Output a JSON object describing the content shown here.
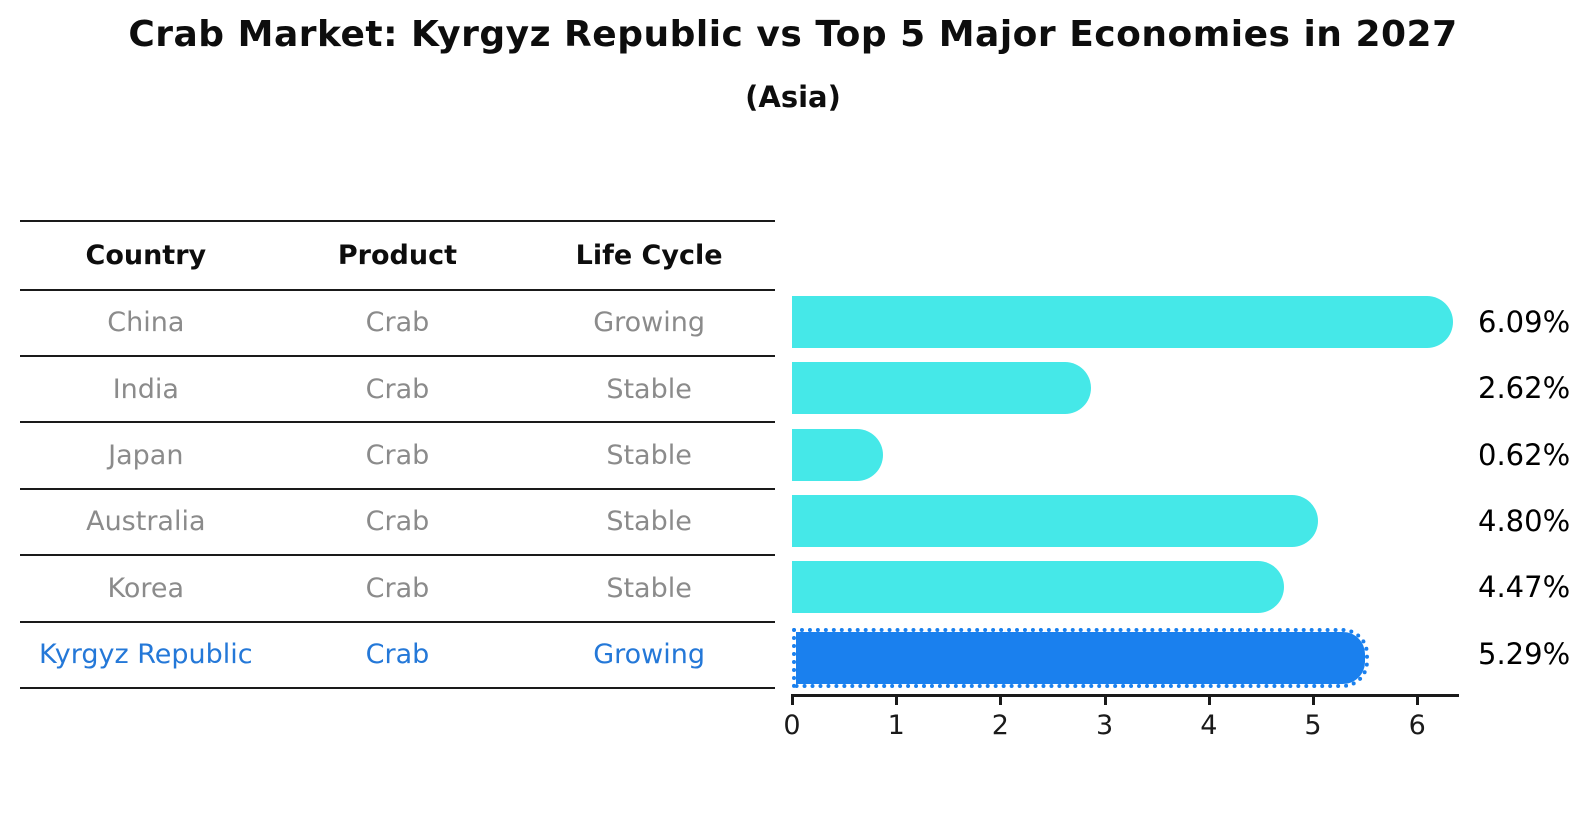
{
  "page": {
    "title": "Crab Market: Kyrgyz Republic vs Top 5 Major Economies in 2027",
    "subtitle": "(Asia)"
  },
  "table": {
    "headers": [
      "Country",
      "Product",
      "Life Cycle"
    ],
    "rows": [
      {
        "country": "China",
        "product": "Crab",
        "life_cycle": "Growing"
      },
      {
        "country": "India",
        "product": "Crab",
        "life_cycle": "Stable"
      },
      {
        "country": "Japan",
        "product": "Crab",
        "life_cycle": "Stable"
      },
      {
        "country": "Australia",
        "product": "Crab",
        "life_cycle": "Stable"
      },
      {
        "country": "Korea",
        "product": "Crab",
        "life_cycle": "Stable"
      },
      {
        "country": "Kyrgyz Republic",
        "product": "Crab",
        "life_cycle": "Growing"
      }
    ]
  },
  "chart_data": {
    "type": "bar",
    "orientation": "horizontal",
    "title": "Crab Market: Kyrgyz Republic vs Top 5 Major Economies in 2027",
    "subtitle": "(Asia)",
    "categories": [
      "China",
      "India",
      "Japan",
      "Australia",
      "Korea",
      "Kyrgyz Republic"
    ],
    "values": [
      6.09,
      2.62,
      0.62,
      4.8,
      4.47,
      5.29
    ],
    "value_labels": [
      "6.09%",
      "2.62%",
      "0.62%",
      "4.80%",
      "4.47%",
      "5.29%"
    ],
    "x_ticks": [
      "0",
      "1",
      "2",
      "3",
      "4",
      "5",
      "6"
    ],
    "xlim": [
      0,
      6.4
    ],
    "grid": false,
    "legend": "none",
    "bar_color": "#45E8E8",
    "highlight_color": "#1A80EE",
    "highlight_index": 5,
    "highlight_border_style": "dotted",
    "label_color": "#000000",
    "table_text_color": "#8b8b8b",
    "highlight_text_color": "#2478d8"
  }
}
